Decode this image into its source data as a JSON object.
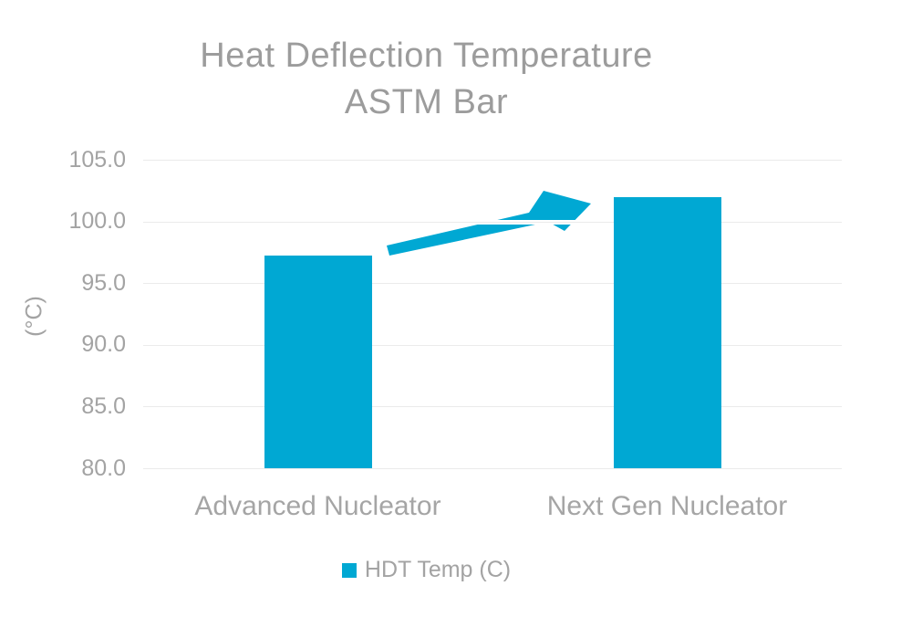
{
  "chart_data": {
    "type": "bar",
    "title_line1": "Heat Deflection Temperature",
    "title_line2": "ASTM Bar",
    "ylabel": "(°C)",
    "categories": [
      "Advanced Nucleator",
      "Next Gen Nucleator"
    ],
    "series": [
      {
        "name": "HDT Temp (C)",
        "values": [
          97.2,
          102.0
        ]
      }
    ],
    "ylim": [
      80.0,
      105.0
    ],
    "ytick_interval": 5.0,
    "ytick_labels": [
      "105.0",
      "100.0",
      "95.0",
      "90.0",
      "85.0",
      "80.0"
    ],
    "grid": true,
    "legend_position": "bottom",
    "annotation": "upward trend arrow from first bar to second bar"
  },
  "legend": {
    "label": "HDT Temp (C)"
  },
  "colors": {
    "bar": "#00a8d3",
    "arrow": "#00a8d3",
    "title_text": "#9c9c9c",
    "axis_text": "#a3a3a3",
    "gridline": "#ebebeb",
    "background": "#ffffff"
  }
}
